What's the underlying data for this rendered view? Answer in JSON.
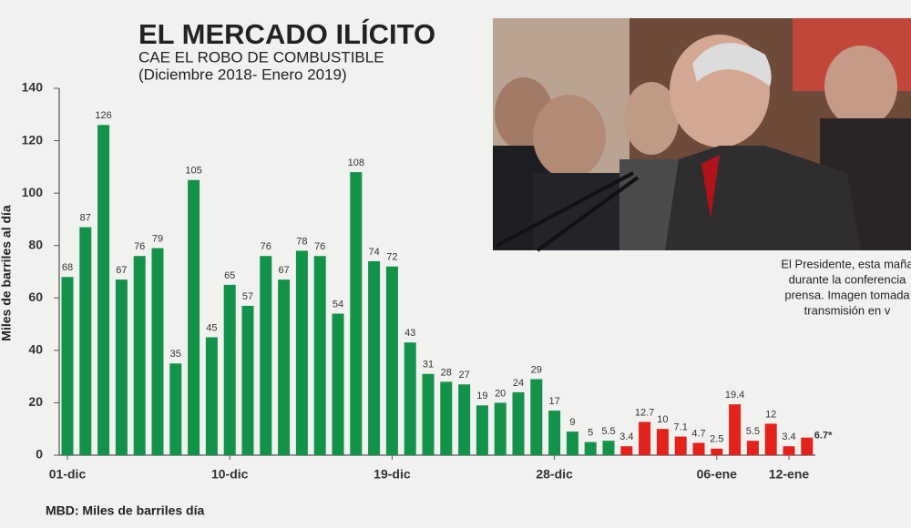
{
  "chart_data": {
    "type": "bar",
    "title": "EL MERCADO ILÍCITO",
    "subtitle": "CAE EL ROBO DE COMBUSTIBLE",
    "period": "(Diciembre 2018- Enero 2019)",
    "y_label": "Miles de barriles al día",
    "footnote": "MBD: Miles de barriles día",
    "caption": [
      "El Presidente, esta maña",
      "durante la conferencia",
      "prensa. Imagen tomada",
      "transmisión en v"
    ],
    "categories": [
      "01-dic",
      null,
      null,
      null,
      null,
      null,
      null,
      null,
      null,
      "10-dic",
      null,
      null,
      null,
      null,
      null,
      null,
      null,
      null,
      "19-dic",
      null,
      null,
      null,
      null,
      null,
      null,
      null,
      null,
      "28-dic",
      null,
      null,
      null,
      null,
      null,
      null,
      null,
      null,
      "06-ene",
      null,
      null,
      null,
      "12-ene",
      null
    ],
    "values": [
      68,
      87,
      126,
      67,
      76,
      79,
      35,
      105,
      45,
      65,
      57,
      76,
      67,
      78,
      76,
      54,
      108,
      74,
      72,
      43,
      31,
      28,
      27,
      19,
      20,
      24,
      29,
      17,
      9,
      5,
      5.5,
      3.4,
      12.7,
      10,
      7.1,
      4.7,
      2.5,
      19.4,
      5.5,
      12,
      3.4,
      6.7
    ],
    "value_labels": [
      "68",
      "87",
      "126",
      "67",
      "76",
      "79",
      "35",
      "105",
      "45",
      "65",
      "57",
      "76",
      "67",
      "78",
      "76",
      "54",
      "108",
      "74",
      "72",
      "43",
      "31",
      "28",
      "27",
      "19",
      "20",
      "24",
      "29",
      "17",
      "9",
      "5",
      "5.5",
      "3.4",
      "12.7",
      "10",
      "7.1",
      "4.7",
      "2.5",
      "19.4",
      "5.5",
      "12",
      "3.4",
      "6.7*"
    ],
    "colors": [
      "#13924a",
      "#13924a",
      "#13924a",
      "#13924a",
      "#13924a",
      "#13924a",
      "#13924a",
      "#13924a",
      "#13924a",
      "#13924a",
      "#13924a",
      "#13924a",
      "#13924a",
      "#13924a",
      "#13924a",
      "#13924a",
      "#13924a",
      "#13924a",
      "#13924a",
      "#13924a",
      "#13924a",
      "#13924a",
      "#13924a",
      "#13924a",
      "#13924a",
      "#13924a",
      "#13924a",
      "#13924a",
      "#13924a",
      "#13924a",
      "#13924a",
      "#e3221b",
      "#e3221b",
      "#e3221b",
      "#e3221b",
      "#e3221b",
      "#e3221b",
      "#e3221b",
      "#e3221b",
      "#e3221b",
      "#e3221b",
      "#e3221b"
    ],
    "ylim": [
      0,
      140
    ],
    "yticks": [
      0,
      20,
      40,
      60,
      80,
      100,
      120,
      140
    ]
  }
}
